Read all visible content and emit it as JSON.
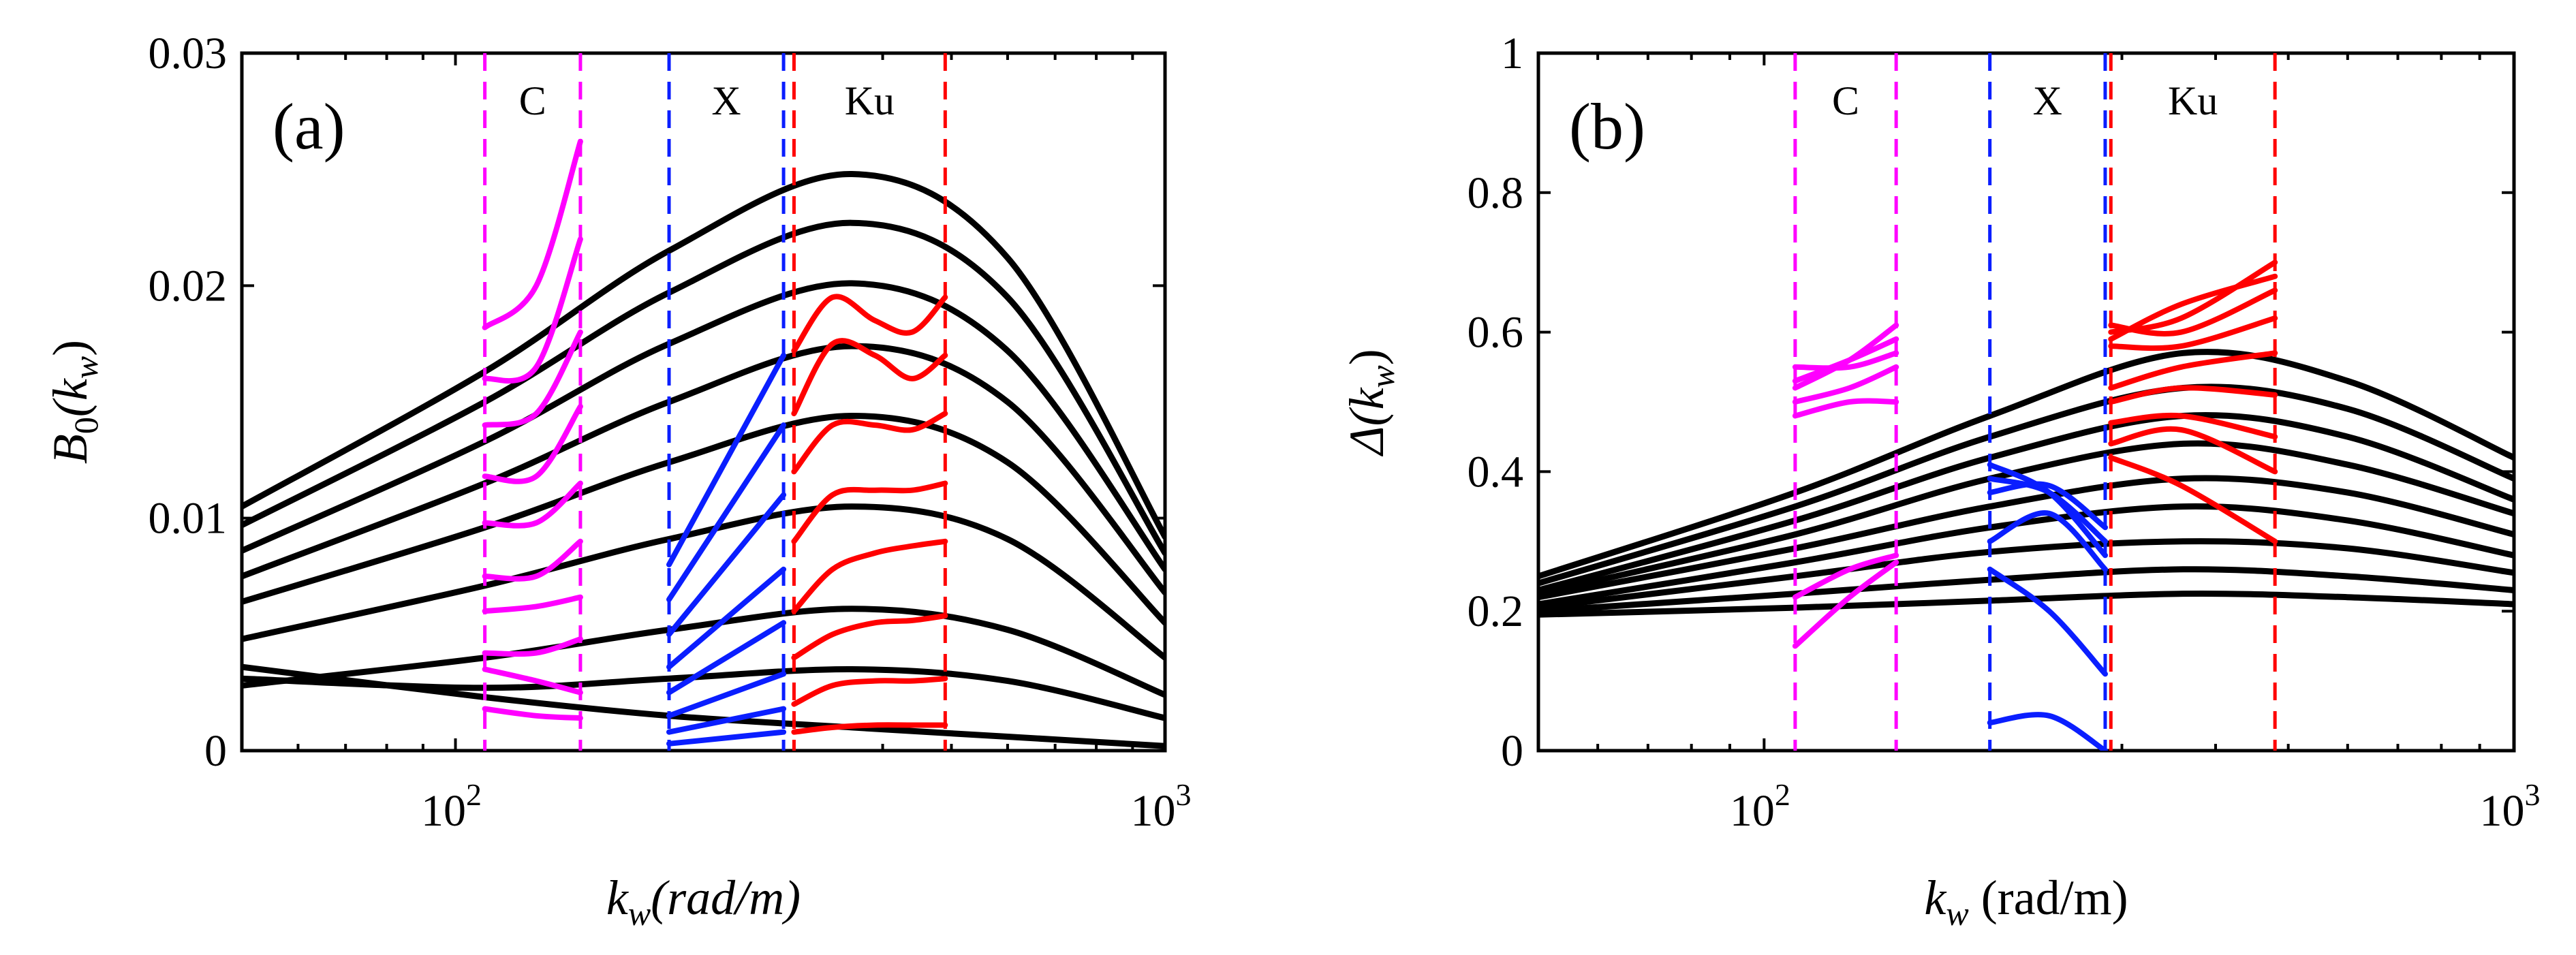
{
  "figure": {
    "panels": [
      {
        "id": "a",
        "panel_label": "(a)",
        "ylabel_main": "B",
        "ylabel_sub": "0",
        "ylabel_open": "(k",
        "ylabel_sub2": "w",
        "ylabel_close": ")",
        "xlabel_main": "k",
        "xlabel_sub": "w",
        "xlabel_rest": "(rad/m)",
        "xlabel_italic": true
      },
      {
        "id": "b",
        "panel_label": "(b)",
        "ylabel_main": "Δ",
        "ylabel_sub": "",
        "ylabel_open": "(k",
        "ylabel_sub2": "w",
        "ylabel_close": ")",
        "xlabel_main": "k",
        "xlabel_sub": "w",
        "xlabel_rest": " (rad/m)",
        "xlabel_italic": false
      }
    ],
    "x_ticks": [
      {
        "base": "10",
        "exp": "2",
        "value": 100
      },
      {
        "base": "10",
        "exp": "3",
        "value": 1000
      }
    ]
  },
  "colors": {
    "model": "#000000",
    "C": "#ff00ff",
    "X": "#0a1eff",
    "Ku": "#ff0000"
  },
  "chart_data": [
    {
      "type": "line",
      "title": "(a)",
      "xlabel": "k_w (rad/m)",
      "ylabel": "B_0(k_w)",
      "xscale": "log",
      "xlim": [
        50,
        1000
      ],
      "ylim": [
        0,
        0.03
      ],
      "yticks": [
        0,
        0.01,
        0.02,
        0.03
      ],
      "ytick_labels": [
        "0",
        "0.01",
        "0.02",
        "0.03"
      ],
      "bands": [
        {
          "name": "C",
          "range": [
            110,
            150
          ]
        },
        {
          "name": "X",
          "range": [
            200,
            290
          ]
        },
        {
          "name": "Ku",
          "range": [
            300,
            490
          ]
        }
      ],
      "model_curves": [
        {
          "k": [
            50,
            110,
            200,
            362,
            600,
            1000
          ],
          "y": [
            0.0105,
            0.0163,
            0.0215,
            0.0248,
            0.0212,
            0.0092
          ]
        },
        {
          "k": [
            50,
            110,
            200,
            362,
            600,
            1000
          ],
          "y": [
            0.0097,
            0.015,
            0.0197,
            0.0227,
            0.0195,
            0.0085
          ]
        },
        {
          "k": [
            50,
            110,
            200,
            362,
            600,
            1000
          ],
          "y": [
            0.0086,
            0.0133,
            0.0175,
            0.0201,
            0.0172,
            0.0078
          ]
        },
        {
          "k": [
            50,
            110,
            200,
            362,
            600,
            1000
          ],
          "y": [
            0.0075,
            0.0115,
            0.015,
            0.0174,
            0.015,
            0.0068
          ]
        },
        {
          "k": [
            50,
            110,
            200,
            362,
            600,
            1000
          ],
          "y": [
            0.0064,
            0.0096,
            0.0124,
            0.0144,
            0.0124,
            0.0055
          ]
        },
        {
          "k": [
            50,
            110,
            200,
            362,
            600,
            1000
          ],
          "y": [
            0.0048,
            0.0071,
            0.0091,
            0.0105,
            0.0091,
            0.004
          ]
        },
        {
          "k": [
            50,
            110,
            200,
            362,
            600,
            1000
          ],
          "y": [
            0.0028,
            0.004,
            0.0052,
            0.0061,
            0.0052,
            0.0024
          ]
        },
        {
          "k": [
            50,
            110,
            200,
            362,
            600,
            1000
          ],
          "y": [
            0.0031,
            0.0027,
            0.0031,
            0.0035,
            0.003,
            0.0014
          ]
        },
        {
          "k": [
            50,
            110,
            200,
            362,
            600,
            1000
          ],
          "y": [
            0.0036,
            0.0023,
            0.0015,
            0.001,
            0.0006,
            0.0002
          ]
        }
      ],
      "band_curves": [
        {
          "band": "C",
          "k": [
            110,
            130,
            150
          ],
          "y": [
            0.0182,
            0.02,
            0.0262
          ]
        },
        {
          "band": "C",
          "k": [
            110,
            130,
            150
          ],
          "y": [
            0.016,
            0.0165,
            0.022
          ]
        },
        {
          "band": "C",
          "k": [
            110,
            130,
            150
          ],
          "y": [
            0.014,
            0.0145,
            0.018
          ]
        },
        {
          "band": "C",
          "k": [
            110,
            130,
            150
          ],
          "y": [
            0.0118,
            0.0118,
            0.0148
          ]
        },
        {
          "band": "C",
          "k": [
            110,
            130,
            150
          ],
          "y": [
            0.0098,
            0.0098,
            0.0115
          ]
        },
        {
          "band": "C",
          "k": [
            110,
            130,
            150
          ],
          "y": [
            0.0075,
            0.0075,
            0.009
          ]
        },
        {
          "band": "C",
          "k": [
            110,
            130,
            150
          ],
          "y": [
            0.006,
            0.0062,
            0.0066
          ]
        },
        {
          "band": "C",
          "k": [
            110,
            130,
            150
          ],
          "y": [
            0.0042,
            0.0042,
            0.0048
          ]
        },
        {
          "band": "C",
          "k": [
            110,
            130,
            150
          ],
          "y": [
            0.0035,
            0.003,
            0.0025
          ]
        },
        {
          "band": "C",
          "k": [
            110,
            130,
            150
          ],
          "y": [
            0.0018,
            0.0015,
            0.0014
          ]
        },
        {
          "band": "X",
          "k": [
            200,
            290
          ],
          "y": [
            0.008,
            0.017
          ]
        },
        {
          "band": "X",
          "k": [
            200,
            290
          ],
          "y": [
            0.0065,
            0.014
          ]
        },
        {
          "band": "X",
          "k": [
            200,
            290
          ],
          "y": [
            0.005,
            0.011
          ]
        },
        {
          "band": "X",
          "k": [
            200,
            290
          ],
          "y": [
            0.0036,
            0.0078
          ]
        },
        {
          "band": "X",
          "k": [
            200,
            290
          ],
          "y": [
            0.0025,
            0.0055
          ]
        },
        {
          "band": "X",
          "k": [
            200,
            290
          ],
          "y": [
            0.0015,
            0.0033
          ]
        },
        {
          "band": "X",
          "k": [
            200,
            290
          ],
          "y": [
            0.0008,
            0.0018
          ]
        },
        {
          "band": "X",
          "k": [
            200,
            290
          ],
          "y": [
            0.0003,
            0.0008
          ]
        },
        {
          "band": "Ku",
          "k": [
            300,
            340,
            390,
            440,
            490
          ],
          "y": [
            0.0172,
            0.0195,
            0.0185,
            0.018,
            0.0195
          ]
        },
        {
          "band": "Ku",
          "k": [
            300,
            340,
            390,
            440,
            490
          ],
          "y": [
            0.0145,
            0.0175,
            0.017,
            0.016,
            0.017
          ]
        },
        {
          "band": "Ku",
          "k": [
            300,
            340,
            390,
            440,
            490
          ],
          "y": [
            0.012,
            0.014,
            0.014,
            0.0138,
            0.0145
          ]
        },
        {
          "band": "Ku",
          "k": [
            300,
            340,
            390,
            440,
            490
          ],
          "y": [
            0.009,
            0.011,
            0.0112,
            0.0112,
            0.0115
          ]
        },
        {
          "band": "Ku",
          "k": [
            300,
            340,
            390,
            440,
            490
          ],
          "y": [
            0.006,
            0.0078,
            0.0085,
            0.0088,
            0.009
          ]
        },
        {
          "band": "Ku",
          "k": [
            300,
            340,
            390,
            440,
            490
          ],
          "y": [
            0.004,
            0.005,
            0.0055,
            0.0056,
            0.0058
          ]
        },
        {
          "band": "Ku",
          "k": [
            300,
            340,
            390,
            440,
            490
          ],
          "y": [
            0.002,
            0.0028,
            0.003,
            0.003,
            0.0031
          ]
        },
        {
          "band": "Ku",
          "k": [
            300,
            340,
            390,
            440,
            490
          ],
          "y": [
            0.0008,
            0.001,
            0.0011,
            0.0011,
            0.0011
          ]
        }
      ]
    },
    {
      "type": "line",
      "title": "(b)",
      "xlabel": "k_w (rad/m)",
      "ylabel": "Δ(k_w)",
      "xscale": "log",
      "xlim": [
        50,
        1000
      ],
      "ylim": [
        0,
        1
      ],
      "yticks": [
        0,
        0.2,
        0.4,
        0.6,
        0.8,
        1
      ],
      "ytick_labels": [
        "0",
        "0.2",
        "0.4",
        "0.6",
        "0.8",
        "1"
      ],
      "bands": [
        {
          "name": "C",
          "range": [
            110,
            150
          ]
        },
        {
          "name": "X",
          "range": [
            200,
            285
          ]
        },
        {
          "name": "Ku",
          "range": [
            290,
            480
          ]
        }
      ],
      "model_curves": [
        {
          "k": [
            50,
            110,
            200,
            362,
            600,
            1000
          ],
          "y": [
            0.25,
            0.37,
            0.48,
            0.57,
            0.53,
            0.42
          ]
        },
        {
          "k": [
            50,
            110,
            200,
            362,
            600,
            1000
          ],
          "y": [
            0.24,
            0.35,
            0.45,
            0.52,
            0.49,
            0.39
          ]
        },
        {
          "k": [
            50,
            110,
            200,
            362,
            600,
            1000
          ],
          "y": [
            0.23,
            0.33,
            0.42,
            0.48,
            0.45,
            0.36
          ]
        },
        {
          "k": [
            50,
            110,
            200,
            362,
            600,
            1000
          ],
          "y": [
            0.225,
            0.31,
            0.39,
            0.44,
            0.41,
            0.34
          ]
        },
        {
          "k": [
            50,
            110,
            200,
            362,
            600,
            1000
          ],
          "y": [
            0.22,
            0.29,
            0.35,
            0.39,
            0.37,
            0.31
          ]
        },
        {
          "k": [
            50,
            110,
            200,
            362,
            600,
            1000
          ],
          "y": [
            0.21,
            0.27,
            0.32,
            0.35,
            0.33,
            0.28
          ]
        },
        {
          "k": [
            50,
            110,
            200,
            362,
            600,
            1000
          ],
          "y": [
            0.205,
            0.25,
            0.285,
            0.3,
            0.29,
            0.255
          ]
        },
        {
          "k": [
            50,
            110,
            200,
            362,
            600,
            1000
          ],
          "y": [
            0.2,
            0.225,
            0.245,
            0.26,
            0.25,
            0.23
          ]
        },
        {
          "k": [
            50,
            110,
            200,
            362,
            600,
            1000
          ],
          "y": [
            0.195,
            0.205,
            0.215,
            0.225,
            0.22,
            0.21
          ]
        }
      ],
      "band_curves": [
        {
          "band": "C",
          "k": [
            110,
            130,
            150
          ],
          "y": [
            0.52,
            0.56,
            0.61
          ]
        },
        {
          "band": "C",
          "k": [
            110,
            130,
            150
          ],
          "y": [
            0.53,
            0.56,
            0.59
          ]
        },
        {
          "band": "C",
          "k": [
            110,
            130,
            150
          ],
          "y": [
            0.55,
            0.55,
            0.57
          ]
        },
        {
          "band": "C",
          "k": [
            110,
            130,
            150
          ],
          "y": [
            0.5,
            0.52,
            0.55
          ]
        },
        {
          "band": "C",
          "k": [
            110,
            130,
            150
          ],
          "y": [
            0.48,
            0.5,
            0.5
          ]
        },
        {
          "band": "C",
          "k": [
            110,
            130,
            150
          ],
          "y": [
            0.22,
            0.26,
            0.28
          ]
        },
        {
          "band": "C",
          "k": [
            110,
            130,
            150
          ],
          "y": [
            0.15,
            0.22,
            0.27
          ]
        },
        {
          "band": "X",
          "k": [
            200,
            240,
            285
          ],
          "y": [
            0.41,
            0.37,
            0.28
          ]
        },
        {
          "band": "X",
          "k": [
            200,
            240,
            285
          ],
          "y": [
            0.39,
            0.37,
            0.3
          ]
        },
        {
          "band": "X",
          "k": [
            200,
            240,
            285
          ],
          "y": [
            0.37,
            0.38,
            0.32
          ]
        },
        {
          "band": "X",
          "k": [
            200,
            240,
            285
          ],
          "y": [
            0.3,
            0.34,
            0.26
          ]
        },
        {
          "band": "X",
          "k": [
            200,
            240,
            285
          ],
          "y": [
            0.26,
            0.2,
            0.11
          ]
        },
        {
          "band": "X",
          "k": [
            200,
            240,
            285
          ],
          "y": [
            0.04,
            0.05,
            0.0
          ]
        },
        {
          "band": "Ku",
          "k": [
            290,
            360,
            480
          ],
          "y": [
            0.6,
            0.62,
            0.7
          ]
        },
        {
          "band": "Ku",
          "k": [
            290,
            360,
            480
          ],
          "y": [
            0.59,
            0.64,
            0.68
          ]
        },
        {
          "band": "Ku",
          "k": [
            290,
            360,
            480
          ],
          "y": [
            0.61,
            0.6,
            0.66
          ]
        },
        {
          "band": "Ku",
          "k": [
            290,
            360,
            480
          ],
          "y": [
            0.58,
            0.58,
            0.62
          ]
        },
        {
          "band": "Ku",
          "k": [
            290,
            360,
            480
          ],
          "y": [
            0.52,
            0.55,
            0.57
          ]
        },
        {
          "band": "Ku",
          "k": [
            290,
            360,
            480
          ],
          "y": [
            0.5,
            0.52,
            0.51
          ]
        },
        {
          "band": "Ku",
          "k": [
            290,
            360,
            480
          ],
          "y": [
            0.47,
            0.48,
            0.45
          ]
        },
        {
          "band": "Ku",
          "k": [
            290,
            360,
            480
          ],
          "y": [
            0.44,
            0.46,
            0.4
          ]
        },
        {
          "band": "Ku",
          "k": [
            290,
            360,
            480
          ],
          "y": [
            0.42,
            0.38,
            0.3
          ]
        }
      ]
    }
  ]
}
